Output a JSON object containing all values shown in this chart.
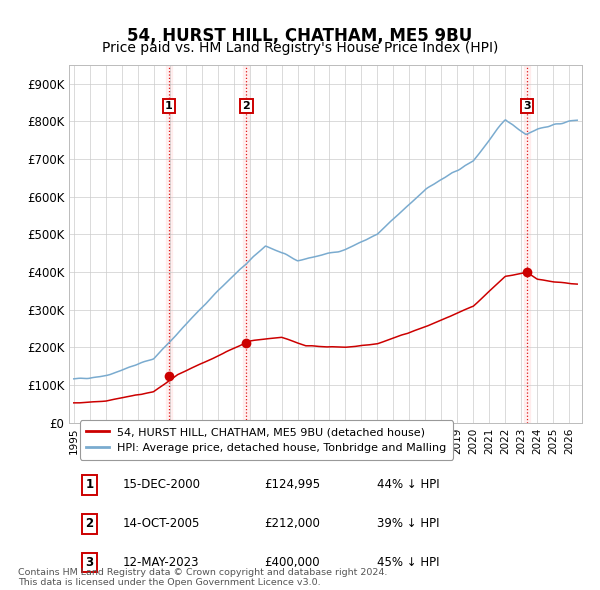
{
  "title": "54, HURST HILL, CHATHAM, ME5 9BU",
  "subtitle": "Price paid vs. HM Land Registry's House Price Index (HPI)",
  "ylabel_ticks": [
    "£0",
    "£100K",
    "£200K",
    "£300K",
    "£400K",
    "£500K",
    "£600K",
    "£700K",
    "£800K",
    "£900K"
  ],
  "ytick_values": [
    0,
    100000,
    200000,
    300000,
    400000,
    500000,
    600000,
    700000,
    800000,
    900000
  ],
  "ylim": [
    0,
    950000
  ],
  "xlim_start": 1994.7,
  "xlim_end": 2026.8,
  "transaction_dates": [
    2000.96,
    2005.79,
    2023.37
  ],
  "transaction_prices": [
    124995,
    212000,
    400000
  ],
  "transaction_labels": [
    "1",
    "2",
    "3"
  ],
  "vline_color": "#dd0000",
  "dot_color": "#cc0000",
  "dot_size": 7,
  "hpi_line_color": "#7aabcf",
  "sale_line_color": "#cc0000",
  "legend_label_sale": "54, HURST HILL, CHATHAM, ME5 9BU (detached house)",
  "legend_label_hpi": "HPI: Average price, detached house, Tonbridge and Malling",
  "table_rows": [
    {
      "num": "1",
      "date": "15-DEC-2000",
      "price": "£124,995",
      "hpi": "44% ↓ HPI"
    },
    {
      "num": "2",
      "date": "14-OCT-2005",
      "price": "£212,000",
      "hpi": "39% ↓ HPI"
    },
    {
      "num": "3",
      "date": "12-MAY-2023",
      "price": "£400,000",
      "hpi": "45% ↓ HPI"
    }
  ],
  "footnote": "Contains HM Land Registry data © Crown copyright and database right 2024.\nThis data is licensed under the Open Government Licence v3.0.",
  "background_color": "#ffffff",
  "grid_color": "#cccccc",
  "label_box_color": "#cc0000",
  "title_fontsize": 12,
  "subtitle_fontsize": 10
}
